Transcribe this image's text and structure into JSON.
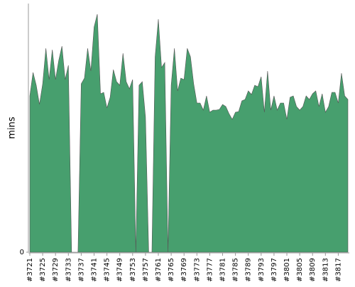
{
  "chart_data": {
    "type": "area",
    "ylabel": "mins",
    "color": "#479f6e",
    "ylim": [
      0,
      35
    ],
    "yticks": [
      0
    ],
    "categories": [
      "#3721",
      null,
      null,
      null,
      "#3725",
      null,
      null,
      null,
      "#3729",
      null,
      null,
      null,
      "#3733",
      null,
      null,
      null,
      "#3737",
      null,
      null,
      null,
      "#3741",
      null,
      null,
      null,
      "#3745",
      null,
      null,
      null,
      "#3749",
      null,
      null,
      null,
      "#3753",
      null,
      null,
      null,
      "#3757",
      null,
      null,
      null,
      "#3761",
      null,
      null,
      null,
      "#3765",
      null,
      null,
      null,
      "#3769",
      null,
      null,
      null,
      "#3773",
      null,
      null,
      null,
      "#3777",
      null,
      null,
      null,
      "#3781",
      null,
      null,
      null,
      "#3785",
      null,
      null,
      null,
      "#3789",
      null,
      null,
      null,
      "#3793",
      null,
      null,
      null,
      "#3797",
      null,
      null,
      null,
      "#3801",
      null,
      null,
      null,
      "#3805",
      null,
      null,
      null,
      "#3809",
      null,
      null,
      null,
      "#3813",
      null,
      null,
      null,
      "#3817",
      null,
      null,
      null
    ],
    "values": [
      22,
      25.3,
      23.5,
      20.8,
      23.7,
      28.7,
      24.3,
      28.5,
      24.3,
      27,
      29,
      24.3,
      26.3,
      0,
      0,
      0,
      23.7,
      24.5,
      28.7,
      25.5,
      31.7,
      33.5,
      22.3,
      22.5,
      20.3,
      21.8,
      25.7,
      24,
      23.5,
      28,
      24,
      23,
      24.3,
      0,
      23.5,
      24,
      19,
      0,
      0,
      27.5,
      32.8,
      26,
      26.7,
      0,
      23.5,
      28.7,
      22.7,
      24.5,
      24.3,
      28.7,
      27.5,
      23.7,
      21,
      21,
      20,
      22,
      19.7,
      20,
      20,
      20.1,
      20.8,
      20.5,
      19.5,
      18.7,
      19.7,
      19.8,
      21.3,
      21.5,
      22.7,
      22.2,
      23.5,
      23.3,
      24.7,
      19.7,
      25.5,
      20,
      22,
      20,
      21,
      21,
      18.7,
      21.8,
      22,
      20.5,
      20,
      20.5,
      22,
      21.5,
      22.3,
      22.7,
      20.5,
      22.3,
      19.7,
      20.5,
      22.5,
      22.5,
      21,
      25.2,
      22,
      21.5
    ]
  }
}
